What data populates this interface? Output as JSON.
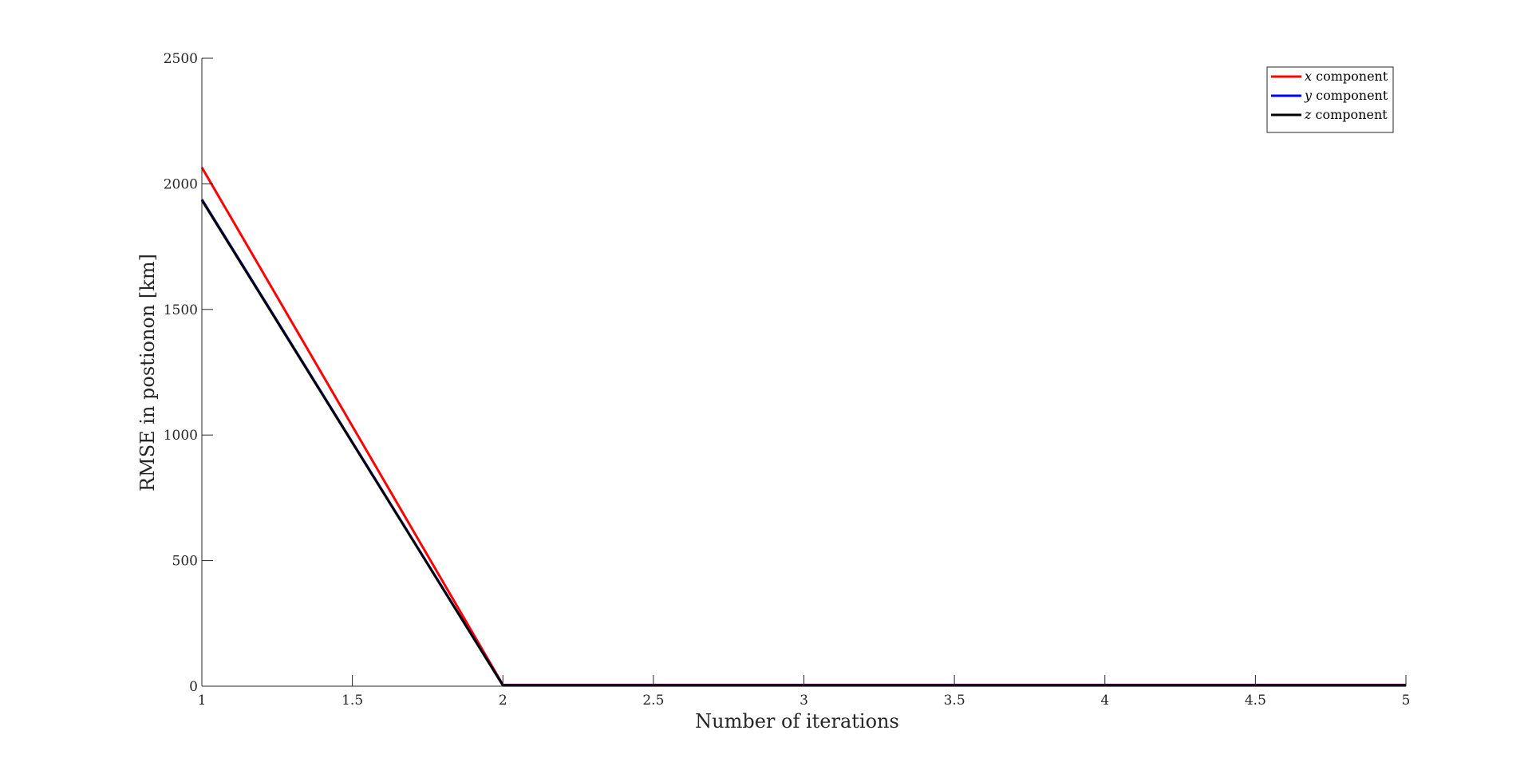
{
  "chart_data": {
    "type": "line",
    "title": "",
    "xlabel": "Number of iterations",
    "ylabel": "RMSE in postionon [km]",
    "xlim": [
      1,
      5
    ],
    "ylim": [
      0,
      2500
    ],
    "xticks": [
      1,
      1.5,
      2,
      2.5,
      3,
      3.5,
      4,
      4.5,
      5
    ],
    "xtick_labels": [
      "1",
      "1.5",
      "2",
      "2.5",
      "3",
      "3.5",
      "4",
      "4.5",
      "5"
    ],
    "yticks": [
      0,
      500,
      1000,
      1500,
      2000,
      2500
    ],
    "ytick_labels": [
      "0",
      "500",
      "1000",
      "1500",
      "2000",
      "2500"
    ],
    "grid": false,
    "legend_position": "top-right",
    "x": [
      1,
      2,
      3,
      4,
      5
    ],
    "series": [
      {
        "name": "x component",
        "var": "x",
        "label": "component",
        "color": "#ff0000",
        "values": [
          2065,
          5,
          5,
          5,
          5
        ]
      },
      {
        "name": "y component",
        "var": "y",
        "label": "component",
        "color": "#0000ff",
        "values": [
          1938,
          4,
          4,
          4,
          4
        ]
      },
      {
        "name": "z component",
        "var": "z",
        "label": "component",
        "color": "#000000",
        "values": [
          1935,
          3,
          3,
          3,
          3
        ]
      }
    ]
  }
}
